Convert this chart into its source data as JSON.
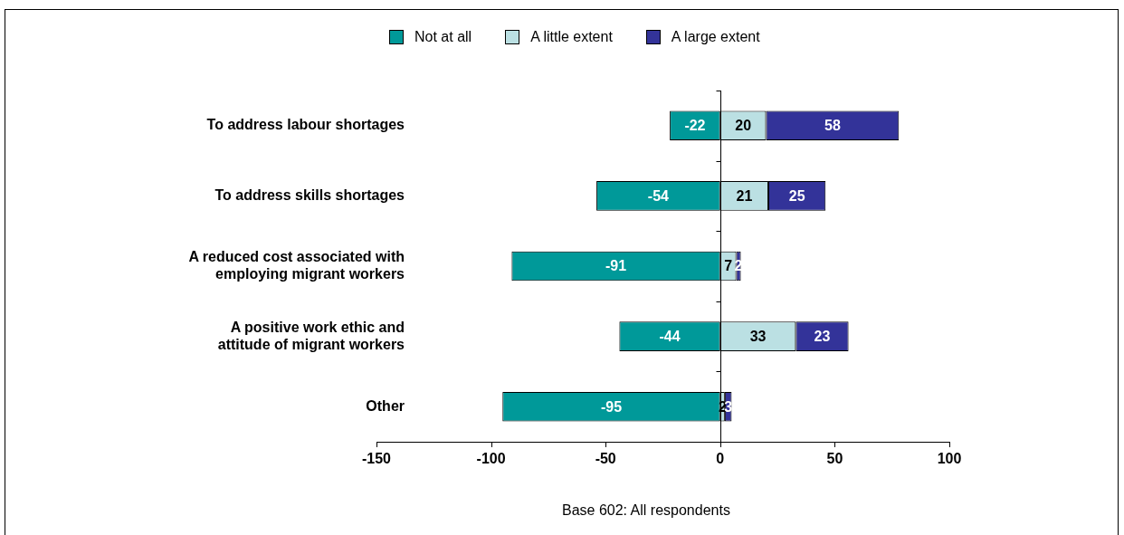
{
  "chart_data": {
    "type": "bar",
    "orientation": "horizontal",
    "stacked": true,
    "categories": [
      "To address labour shortages",
      "To address skills shortages",
      "A reduced cost associated with\nemploying migrant workers",
      "A positive work ethic and\nattitude of migrant workers",
      "Other"
    ],
    "series": [
      {
        "name": "Not at all",
        "color": "#009999",
        "values": [
          -22,
          -54,
          -91,
          -44,
          -95
        ]
      },
      {
        "name": "A little extent",
        "color": "#bbe0e3",
        "values": [
          20,
          21,
          7,
          33,
          2
        ]
      },
      {
        "name": "A large extent",
        "color": "#333399",
        "values": [
          58,
          25,
          2,
          23,
          3
        ]
      }
    ],
    "xlim": [
      -150,
      100
    ],
    "xticks": [
      -150,
      -100,
      -50,
      0,
      50,
      100
    ],
    "grid": false,
    "legend": "top",
    "data_labels": true,
    "ref_lines": [
      {
        "axis": "x",
        "value": 0,
        "color": "#000000"
      }
    ],
    "annotations": [
      "Base 602: All respondents"
    ]
  }
}
